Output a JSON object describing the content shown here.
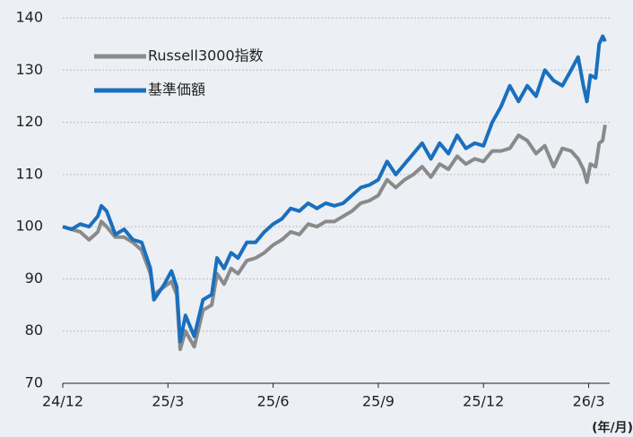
{
  "chart_data": {
    "type": "line",
    "x_axis_label": "(年/月)",
    "x": [
      0,
      0.25,
      0.5,
      0.75,
      1.0,
      1.1,
      1.25,
      1.5,
      1.75,
      2.0,
      2.25,
      2.5,
      2.6,
      2.9,
      3.1,
      3.25,
      3.35,
      3.5,
      3.75,
      4.0,
      4.25,
      4.4,
      4.6,
      4.8,
      5.0,
      5.25,
      5.5,
      5.75,
      6.0,
      6.25,
      6.5,
      6.75,
      7.0,
      7.25,
      7.5,
      7.75,
      8.0,
      8.25,
      8.5,
      8.75,
      9.0,
      9.25,
      9.5,
      9.75,
      10.0,
      10.25,
      10.5,
      10.75,
      11.0,
      11.25,
      11.5,
      11.75,
      12.0,
      12.25,
      12.5,
      12.75,
      13.0,
      13.25,
      13.5,
      13.75,
      14.0,
      14.25,
      14.5,
      14.7,
      14.85,
      14.95,
      15.05,
      15.2,
      15.3,
      15.4,
      15.47
    ],
    "series": [
      {
        "name": "Russell3000指数",
        "color": "#8a8a8a",
        "values": [
          100,
          99.5,
          99,
          97.5,
          99,
          101,
          100,
          98,
          98,
          97,
          95.5,
          91,
          87,
          88.5,
          89.5,
          87,
          76.5,
          80,
          77,
          84,
          85,
          91,
          89,
          92,
          91,
          93.5,
          94,
          95,
          96.5,
          97.5,
          99,
          98.5,
          100.5,
          100,
          101,
          101,
          102,
          103,
          104.5,
          105,
          106,
          109,
          107.5,
          109,
          110,
          111.5,
          109.5,
          112,
          111,
          113.5,
          112,
          113,
          112.5,
          114.5,
          114.5,
          115,
          117.5,
          116.5,
          114,
          115.5,
          111.5,
          115,
          114.5,
          113,
          111,
          108.5,
          112,
          111.5,
          116,
          116.5,
          119.5
        ]
      },
      {
        "name": "基準価額",
        "color": "#1a6fbe",
        "values": [
          100,
          99.5,
          100.5,
          100,
          102,
          104,
          103,
          98.5,
          99.5,
          97.5,
          97,
          92,
          86,
          89,
          91.5,
          88.5,
          78,
          83,
          79,
          86,
          87,
          94,
          92,
          95,
          94,
          97,
          97,
          99,
          100.5,
          101.5,
          103.5,
          103,
          104.5,
          103.5,
          104.5,
          104,
          104.5,
          106,
          107.5,
          108,
          109,
          112.5,
          110,
          112,
          114,
          116,
          113,
          116,
          114,
          117.5,
          115,
          116,
          115.5,
          120,
          123,
          127,
          124,
          127,
          125,
          130,
          128,
          127,
          130,
          132.5,
          127,
          124,
          129,
          128.5,
          135,
          136.5,
          135.5
        ]
      }
    ],
    "xlim": [
      0,
      15.6
    ],
    "xticks": [
      {
        "value": 0,
        "label": "24/12"
      },
      {
        "value": 3,
        "label": "25/3"
      },
      {
        "value": 6,
        "label": "25/6"
      },
      {
        "value": 9,
        "label": "25/9"
      },
      {
        "value": 12,
        "label": "25/12"
      },
      {
        "value": 15,
        "label": "26/3"
      }
    ],
    "ylim": [
      70,
      140
    ],
    "yticks": [
      70,
      80,
      90,
      100,
      110,
      120,
      130,
      140
    ],
    "grid": true,
    "legend": "upper left"
  }
}
